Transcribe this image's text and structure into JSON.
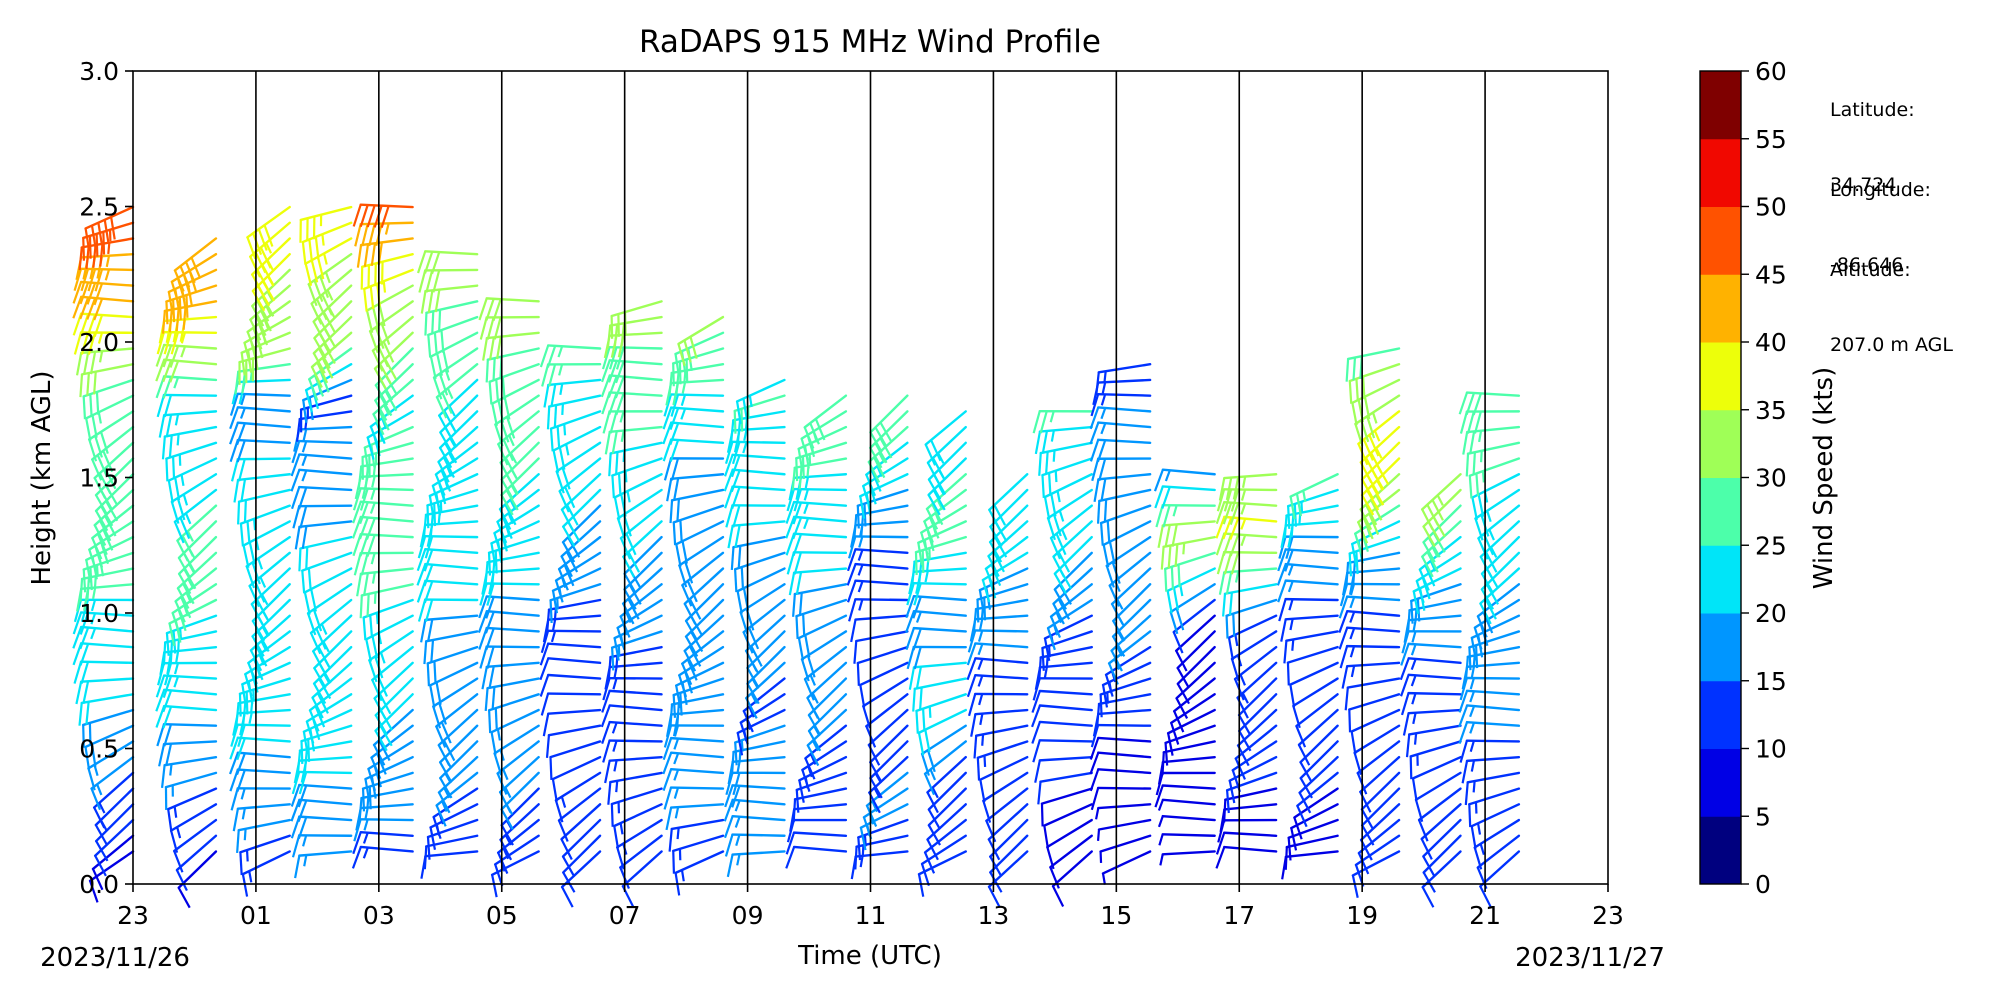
{
  "chart_data": {
    "type": "wind_barb_profile",
    "title": "RaDAPS 915 MHz Wind Profile",
    "xlabel": "Time (UTC)",
    "ylabel": "Height (km AGL)",
    "x_tick_labels": [
      "23",
      "01",
      "03",
      "05",
      "07",
      "09",
      "11",
      "13",
      "15",
      "17",
      "19",
      "21",
      "23"
    ],
    "x_tick_hours": [
      0,
      2,
      4,
      6,
      8,
      10,
      12,
      14,
      16,
      18,
      20,
      22,
      24
    ],
    "x_range_hours": [
      0,
      24
    ],
    "date_start": "2023/11/26",
    "date_end": "2023/11/27",
    "vertical_gridlines_hours": [
      2,
      4,
      6,
      8,
      10,
      12,
      14,
      16,
      18,
      20,
      22
    ],
    "ylim": [
      0.0,
      3.0
    ],
    "y_ticks": [
      "0.0",
      "0.5",
      "1.0",
      "1.5",
      "2.0",
      "2.5",
      "3.0"
    ],
    "colorbar": {
      "label": "Wind Speed (kts)",
      "ticks": [
        "0",
        "5",
        "10",
        "15",
        "20",
        "25",
        "30",
        "35",
        "40",
        "45",
        "50",
        "55",
        "60"
      ],
      "colors": [
        "#00007f",
        "#0000e5",
        "#0032ff",
        "#0096ff",
        "#00e5f8",
        "#4cffaa",
        "#9fff57",
        "#edff0a",
        "#ffb200",
        "#ff5200",
        "#f10800",
        "#7f0000"
      ]
    },
    "profiles": [
      {
        "hour": 0.0,
        "profile": [
          [
            0.12,
            8
          ],
          [
            0.4,
            14
          ],
          [
            0.7,
            20
          ],
          [
            1.0,
            24
          ],
          [
            1.3,
            28
          ],
          [
            1.6,
            30
          ],
          [
            1.8,
            27
          ],
          [
            2.0,
            34
          ],
          [
            2.2,
            42
          ],
          [
            2.5,
            48
          ]
        ]
      },
      {
        "hour": 1.35,
        "profile": [
          [
            0.12,
            9
          ],
          [
            0.4,
            16
          ],
          [
            0.7,
            22
          ],
          [
            1.0,
            25
          ],
          [
            1.3,
            26
          ],
          [
            1.6,
            24
          ],
          [
            1.8,
            22
          ],
          [
            2.0,
            36
          ],
          [
            2.2,
            42
          ],
          [
            2.4,
            40
          ]
        ]
      },
      {
        "hour": 2.55,
        "profile": [
          [
            0.12,
            14
          ],
          [
            0.4,
            18
          ],
          [
            0.7,
            24
          ],
          [
            1.0,
            25
          ],
          [
            1.3,
            24
          ],
          [
            1.6,
            20
          ],
          [
            1.8,
            16
          ],
          [
            2.0,
            32
          ],
          [
            2.2,
            34
          ],
          [
            2.5,
            38
          ]
        ]
      },
      {
        "hour": 3.55,
        "profile": [
          [
            0.12,
            16
          ],
          [
            0.4,
            20
          ],
          [
            0.7,
            22
          ],
          [
            1.0,
            23
          ],
          [
            1.3,
            20
          ],
          [
            1.6,
            16
          ],
          [
            1.8,
            14
          ],
          [
            2.0,
            30
          ],
          [
            2.2,
            33
          ],
          [
            2.5,
            37
          ]
        ]
      },
      {
        "hour": 4.55,
        "profile": [
          [
            0.12,
            14
          ],
          [
            0.4,
            18
          ],
          [
            0.7,
            20
          ],
          [
            1.0,
            24
          ],
          [
            1.3,
            28
          ],
          [
            1.6,
            26
          ],
          [
            1.8,
            24
          ],
          [
            2.0,
            30
          ],
          [
            2.2,
            32
          ],
          [
            2.5,
            48
          ]
        ]
      },
      {
        "hour": 5.6,
        "profile": [
          [
            0.12,
            10
          ],
          [
            0.4,
            16
          ],
          [
            0.7,
            18
          ],
          [
            1.0,
            20
          ],
          [
            1.3,
            22
          ],
          [
            1.6,
            24
          ],
          [
            1.8,
            24
          ],
          [
            2.0,
            27
          ],
          [
            2.2,
            30
          ],
          [
            2.35,
            32
          ]
        ]
      },
      {
        "hour": 6.6,
        "profile": [
          [
            0.12,
            12
          ],
          [
            0.4,
            15
          ],
          [
            0.7,
            18
          ],
          [
            1.0,
            19
          ],
          [
            1.3,
            22
          ],
          [
            1.6,
            26
          ],
          [
            1.8,
            28
          ],
          [
            2.0,
            30
          ],
          [
            2.2,
            30
          ]
        ]
      },
      {
        "hour": 7.6,
        "profile": [
          [
            0.12,
            10
          ],
          [
            0.4,
            13
          ],
          [
            0.7,
            10
          ],
          [
            1.0,
            14
          ],
          [
            1.3,
            18
          ],
          [
            1.6,
            22
          ],
          [
            1.8,
            24
          ],
          [
            2.0,
            26
          ]
        ]
      },
      {
        "hour": 8.6,
        "profile": [
          [
            0.12,
            12
          ],
          [
            0.4,
            14
          ],
          [
            0.7,
            12
          ],
          [
            1.0,
            16
          ],
          [
            1.3,
            20
          ],
          [
            1.6,
            24
          ],
          [
            1.8,
            28
          ],
          [
            2.0,
            30
          ],
          [
            2.2,
            30
          ]
        ]
      },
      {
        "hour": 9.6,
        "profile": [
          [
            0.12,
            14
          ],
          [
            0.4,
            16
          ],
          [
            0.7,
            18
          ],
          [
            1.0,
            20
          ],
          [
            1.3,
            18
          ],
          [
            1.6,
            20
          ],
          [
            1.8,
            24
          ],
          [
            2.0,
            28
          ],
          [
            2.1,
            32
          ]
        ]
      },
      {
        "hour": 10.6,
        "profile": [
          [
            0.12,
            16
          ],
          [
            0.4,
            18
          ],
          [
            0.7,
            14
          ],
          [
            1.0,
            18
          ],
          [
            1.3,
            20
          ],
          [
            1.6,
            22
          ],
          [
            1.8,
            26
          ],
          [
            1.9,
            24
          ]
        ]
      },
      {
        "hour": 11.6,
        "profile": [
          [
            0.12,
            10
          ],
          [
            0.4,
            12
          ],
          [
            0.7,
            16
          ],
          [
            1.0,
            18
          ],
          [
            1.3,
            22
          ],
          [
            1.6,
            26
          ],
          [
            1.8,
            28
          ],
          [
            1.85,
            26
          ]
        ]
      },
      {
        "hour": 12.6,
        "profile": [
          [
            0.12,
            14
          ],
          [
            0.4,
            16
          ],
          [
            0.7,
            10
          ],
          [
            1.0,
            12
          ],
          [
            1.3,
            16
          ],
          [
            1.6,
            22
          ],
          [
            1.8,
            30
          ],
          [
            1.85,
            28
          ]
        ]
      },
      {
        "hour": 13.55,
        "profile": [
          [
            0.12,
            10
          ],
          [
            0.4,
            12
          ],
          [
            0.7,
            24
          ],
          [
            1.0,
            16
          ],
          [
            1.3,
            28
          ],
          [
            1.6,
            24
          ],
          [
            1.75,
            22
          ]
        ]
      },
      {
        "hour": 14.55,
        "profile": [
          [
            0.12,
            10
          ],
          [
            0.4,
            12
          ],
          [
            0.7,
            14
          ],
          [
            1.0,
            16
          ],
          [
            1.3,
            22
          ],
          [
            1.55,
            20
          ]
        ]
      },
      {
        "hour": 15.6,
        "profile": [
          [
            0.12,
            8
          ],
          [
            0.4,
            10
          ],
          [
            0.7,
            12
          ],
          [
            1.0,
            14
          ],
          [
            1.3,
            22
          ],
          [
            1.6,
            24
          ],
          [
            1.8,
            26
          ]
        ]
      },
      {
        "hour": 16.55,
        "profile": [
          [
            0.12,
            6
          ],
          [
            0.4,
            8
          ],
          [
            0.7,
            12
          ],
          [
            1.0,
            16
          ],
          [
            1.3,
            18
          ],
          [
            1.55,
            20
          ],
          [
            1.95,
            12
          ]
        ]
      },
      {
        "hour": 17.6,
        "profile": [
          [
            0.12,
            6
          ],
          [
            0.4,
            8
          ],
          [
            0.7,
            10
          ],
          [
            1.0,
            8
          ],
          [
            1.3,
            36
          ],
          [
            1.55,
            12
          ]
        ]
      },
      {
        "hour": 18.6,
        "profile": [
          [
            0.12,
            8
          ],
          [
            0.4,
            10
          ],
          [
            0.7,
            12
          ],
          [
            1.0,
            14
          ],
          [
            1.3,
            36
          ],
          [
            1.55,
            32
          ]
        ]
      },
      {
        "hour": 19.6,
        "profile": [
          [
            0.12,
            8
          ],
          [
            0.4,
            10
          ],
          [
            0.7,
            10
          ],
          [
            1.0,
            14
          ],
          [
            1.3,
            20
          ],
          [
            1.55,
            28
          ]
        ]
      },
      {
        "hour": 20.6,
        "profile": [
          [
            0.12,
            10
          ],
          [
            0.4,
            12
          ],
          [
            0.7,
            12
          ],
          [
            1.0,
            14
          ],
          [
            1.3,
            22
          ],
          [
            1.6,
            38
          ],
          [
            1.75,
            36
          ],
          [
            2.0,
            28
          ]
        ]
      },
      {
        "hour": 21.6,
        "profile": [
          [
            0.12,
            10
          ],
          [
            0.4,
            12
          ],
          [
            0.7,
            14
          ],
          [
            1.0,
            16
          ],
          [
            1.3,
            24
          ],
          [
            1.55,
            36
          ]
        ]
      },
      {
        "hour": 22.55,
        "profile": [
          [
            0.12,
            12
          ],
          [
            0.4,
            14
          ],
          [
            0.7,
            16
          ],
          [
            1.0,
            18
          ],
          [
            1.3,
            22
          ],
          [
            1.6,
            26
          ],
          [
            1.85,
            30
          ]
        ]
      }
    ]
  },
  "site_info": {
    "latitude_label": "Latitude:",
    "latitude_value": "34.724",
    "longitude_label": "Longitude:",
    "longitude_value": "-86.646",
    "altitude_label": "Altitude:",
    "altitude_value": "207.0 m AGL"
  }
}
